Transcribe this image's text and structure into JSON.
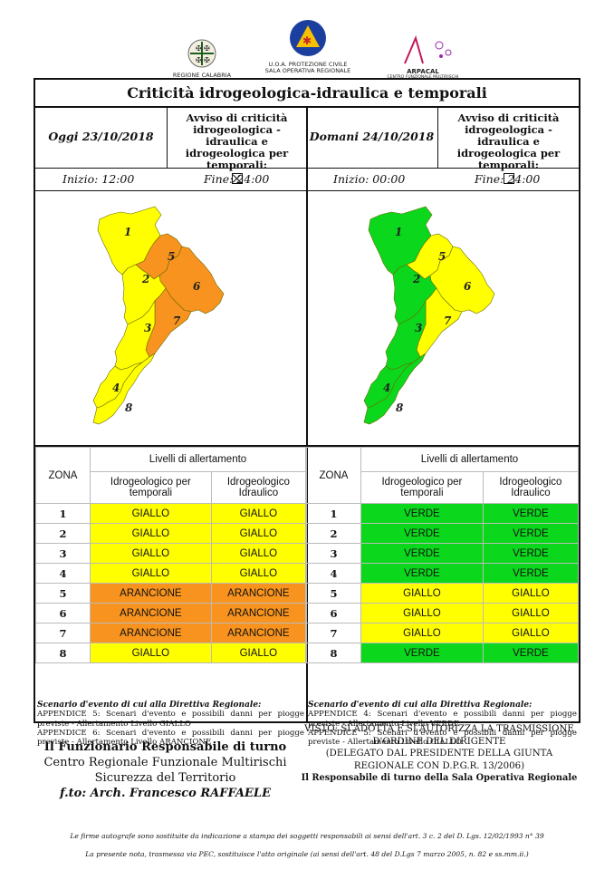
{
  "logos": {
    "left": "REGIONE CALABRIA",
    "center_1": "U.O.A. PROTEZIONE CIVILE",
    "center_2": "SALA OPERATIVA REGIONALE",
    "right_1": "ARPACAL",
    "right_2": "CENTRO FUNZIONALE MULTIRISCHI"
  },
  "title": "Criticità idrogeologica-idraulica e temporali",
  "avviso_label_1": "Avviso di criticità",
  "avviso_label_2": "idrogeologica - idraulica e",
  "avviso_label_3": "idrogeologica per temporali:",
  "levels_header": "Livelli di allertamento",
  "zona_label": "ZONA",
  "col1_line1": "Idrogeologico per",
  "col1_line2": "temporali",
  "col2_line1": "Idrogeologico",
  "col2_line2": "Idraulico",
  "colors": {
    "GIALLO": "#ffff00",
    "VERDE": "#0bd81c",
    "ARANCIONE": "#f7931e"
  },
  "today": {
    "date": "Oggi 23/10/2018",
    "avviso_checked": true,
    "inizio": "Inizio: 12:00",
    "fine": "Fine: 24:00",
    "zones": [
      {
        "zone": "1",
        "temp": "GIALLO",
        "idraulico": "GIALLO"
      },
      {
        "zone": "2",
        "temp": "GIALLO",
        "idraulico": "GIALLO"
      },
      {
        "zone": "3",
        "temp": "GIALLO",
        "idraulico": "GIALLO"
      },
      {
        "zone": "4",
        "temp": "GIALLO",
        "idraulico": "GIALLO"
      },
      {
        "zone": "5",
        "temp": "ARANCIONE",
        "idraulico": "ARANCIONE"
      },
      {
        "zone": "6",
        "temp": "ARANCIONE",
        "idraulico": "ARANCIONE"
      },
      {
        "zone": "7",
        "temp": "ARANCIONE",
        "idraulico": "ARANCIONE"
      },
      {
        "zone": "8",
        "temp": "GIALLO",
        "idraulico": "GIALLO"
      }
    ],
    "scenario_title": "Scenario d'evento di cui alla Direttiva Regionale:",
    "scenario_1": "APPENDICE 5: Scenari d'evento e possibili danni per piogge previste - Allertamento Livello GIALLO",
    "scenario_2": "APPENDICE 6: Scenari d'evento e possibili danni per piogge previste - Allertamento Livello ARANCIONE"
  },
  "tomorrow": {
    "date": "Domani 24/10/2018",
    "avviso_checked": false,
    "inizio": "Inizio: 00:00",
    "fine": "Fine: 24:00",
    "zones": [
      {
        "zone": "1",
        "temp": "VERDE",
        "idraulico": "VERDE"
      },
      {
        "zone": "2",
        "temp": "VERDE",
        "idraulico": "VERDE"
      },
      {
        "zone": "3",
        "temp": "VERDE",
        "idraulico": "VERDE"
      },
      {
        "zone": "4",
        "temp": "VERDE",
        "idraulico": "VERDE"
      },
      {
        "zone": "5",
        "temp": "GIALLO",
        "idraulico": "GIALLO"
      },
      {
        "zone": "6",
        "temp": "GIALLO",
        "idraulico": "GIALLO"
      },
      {
        "zone": "7",
        "temp": "GIALLO",
        "idraulico": "GIALLO"
      },
      {
        "zone": "8",
        "temp": "VERDE",
        "idraulico": "VERDE"
      }
    ],
    "scenario_title": "Scenario d'evento di cui alla Direttiva Regionale:",
    "scenario_1": "APPENDICE 4: Scenari d'evento e possibili danni per piogge previste - Allertamento Livello VERDE",
    "scenario_2": "APPENDICE 5: Scenari d'evento e possibili danni per piogge previste - Allertamento Livello GIALLO"
  },
  "signature_left": {
    "line1": "Il Funzionario Responsabile di turno",
    "line2": "Centro Regionale Funzionale Multirischi",
    "line3": "Sicurezza del Territorio",
    "line4": "f.to: Arch. Francesco RAFFAELE"
  },
  "signature_right": {
    "line1": "VISTO: SI ADOTTA E SI AUTORIZZA LA TRASMISSIONE",
    "line2": "D'ORDINE DEL DIRIGENTE",
    "line3": "(DELEGATO DAL PRESIDENTE DELLA GIUNTA",
    "line4": "REGIONALE CON D.P.G.R. 13/2006)",
    "line5": "Il Responsabile di turno della Sala Operativa Regionale"
  },
  "footer": {
    "line1": "Le firme autografe sono sostituite da indicazione a stampa dei soggetti responsabili ai sensi dell'art. 3 c. 2 del D. Lgs. 12/02/1993 n° 39",
    "line2": "La presente nota, trasmessa via PEC, sostituisce l'atto originale (ai sensi dell'art. 48 del D.Lgs 7 marzo 2005, n. 82 e ss.mm.ii.)"
  }
}
